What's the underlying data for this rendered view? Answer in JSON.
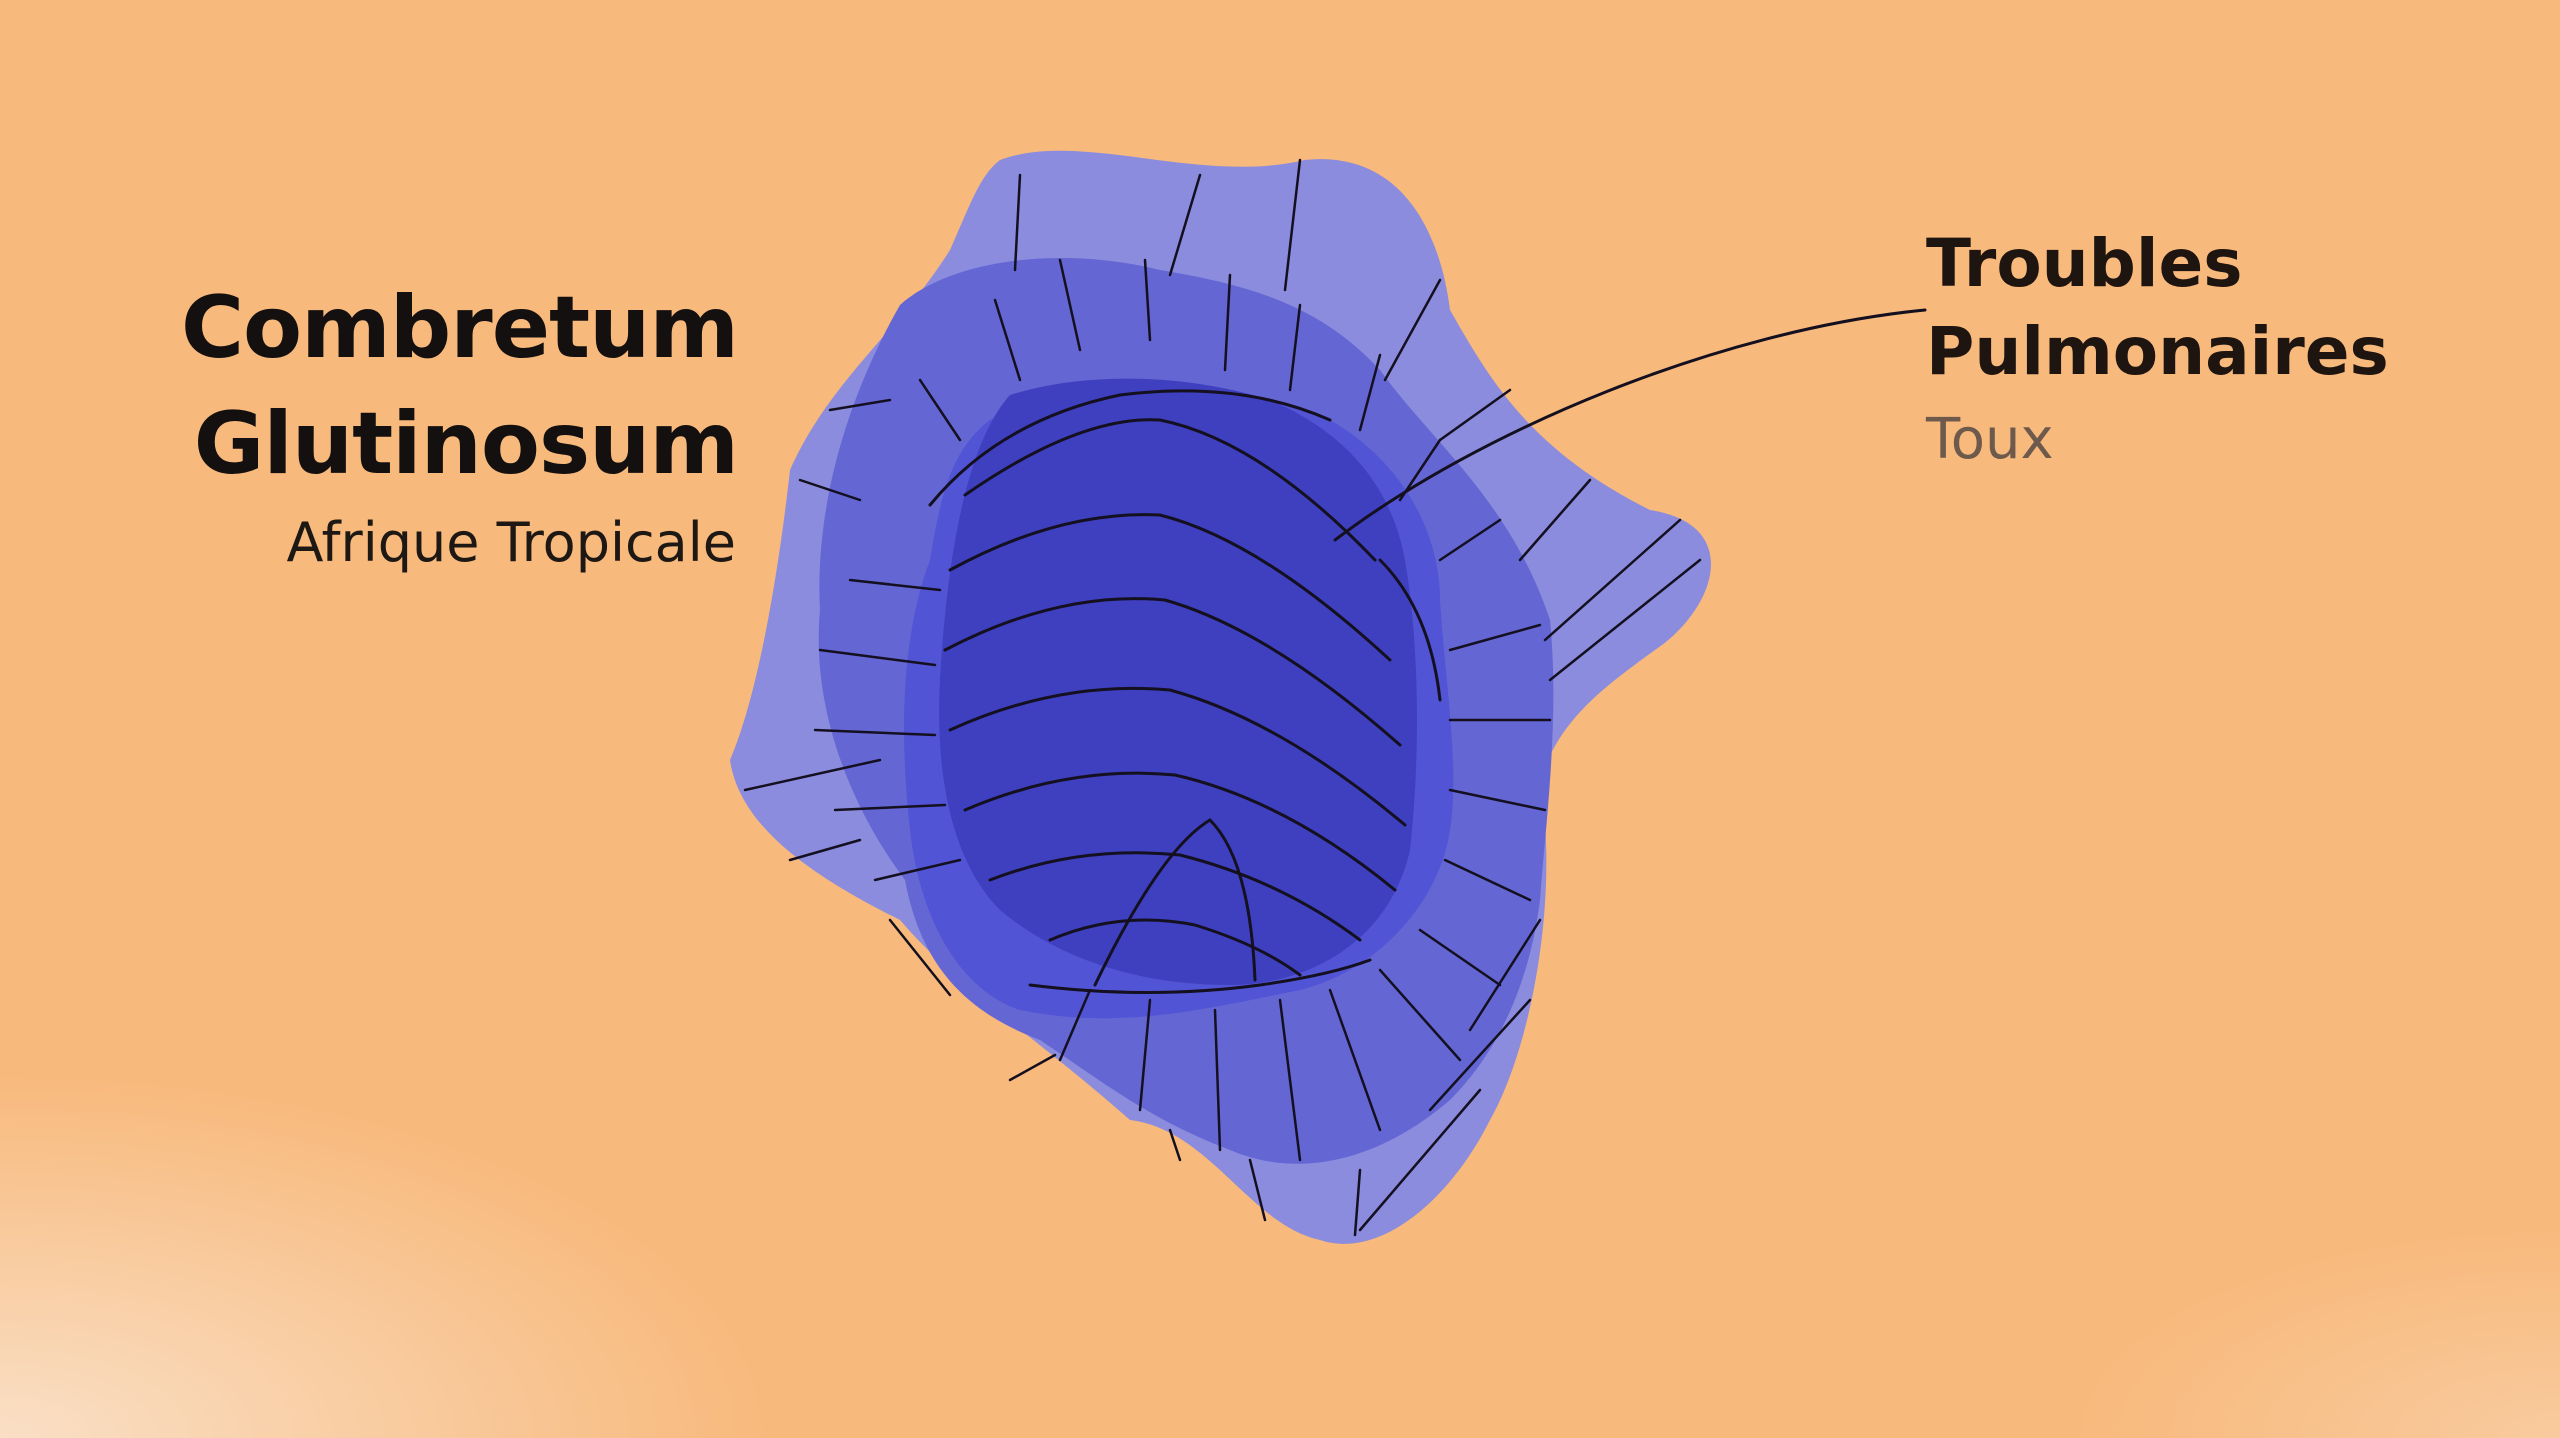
{
  "plant": {
    "name_line1": "Combretum",
    "name_line2": "Glutinosum",
    "region": "Afrique Tropicale"
  },
  "use": {
    "title_line1": "Troubles",
    "title_line2": "Pulmonaires",
    "detail": "Toux"
  },
  "colors": {
    "background": "#f8b97c",
    "outer_layer": "#8b8cdd",
    "middle_layer": "#6466d4",
    "inner_layer": "#5154d4",
    "core": "#3e40bf",
    "line": "#141020"
  }
}
